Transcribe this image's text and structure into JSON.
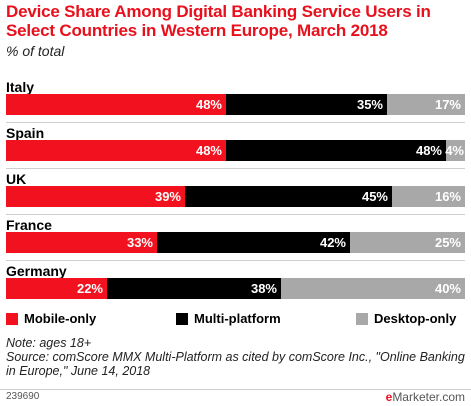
{
  "chart_data": {
    "type": "bar",
    "orientation": "horizontal",
    "stacked": true,
    "title": "Device Share Among Digital Banking Service Users in Select Countries in Western Europe, March 2018",
    "subtitle": "% of total",
    "categories": [
      "Italy",
      "Spain",
      "UK",
      "France",
      "Germany"
    ],
    "series": [
      {
        "name": "Mobile-only",
        "color": "#f2121f",
        "values": [
          48,
          48,
          39,
          33,
          22
        ],
        "labels": [
          "48%",
          "48%",
          "39%",
          "33%",
          "22%"
        ]
      },
      {
        "name": "Multi-platform",
        "color": "#000000",
        "values": [
          35,
          48,
          45,
          42,
          38
        ],
        "labels": [
          "35%",
          "48%",
          "45%",
          "42%",
          "38%"
        ]
      },
      {
        "name": "Desktop-only",
        "color": "#a8a8a8",
        "values": [
          17,
          4,
          16,
          25,
          40
        ],
        "labels": [
          "17%",
          "4%",
          "16%",
          "25%",
          "40%"
        ]
      }
    ],
    "legend_position": "bottom"
  },
  "notes": {
    "note": "Note: ages 18+",
    "source": "Source: comScore MMX Multi-Platform as cited by comScore Inc., \"Online Banking in Europe,\" June 14, 2018"
  },
  "footer": {
    "chart_id": "239690",
    "brand_prefix": "e",
    "brand_rest": "Marketer.com"
  }
}
